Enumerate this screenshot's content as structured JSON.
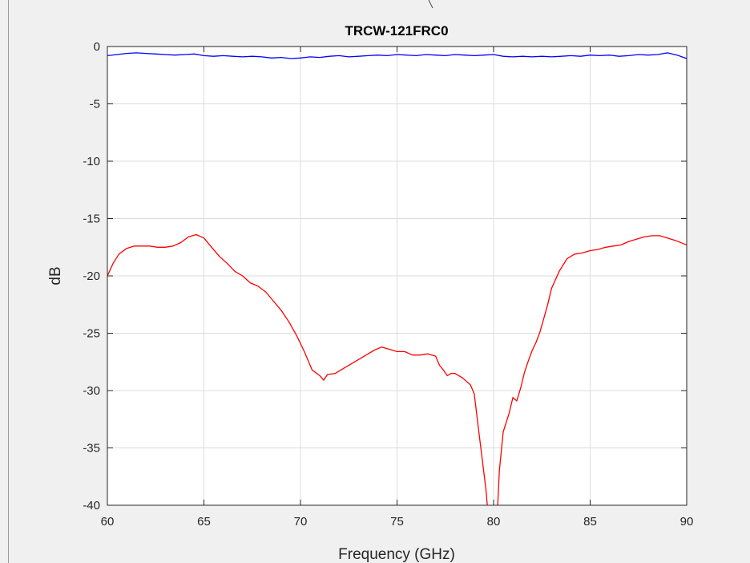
{
  "chart_data": {
    "type": "line",
    "title": "TRCW-121FRC0",
    "xlabel": "Frequency (GHz)",
    "ylabel": "dB",
    "xlim": [
      60,
      90
    ],
    "ylim": [
      -40,
      0
    ],
    "xticks": [
      "60",
      "65",
      "70",
      "75",
      "80",
      "85",
      "90"
    ],
    "yticks": [
      "0",
      "-5",
      "-10",
      "-15",
      "-20",
      "-25",
      "-30",
      "-35",
      "-40"
    ],
    "grid": true,
    "series": [
      {
        "color": "#0000ff",
        "x": [
          60,
          60.5,
          61,
          61.5,
          62,
          62.5,
          63,
          63.5,
          64,
          64.5,
          65,
          65.5,
          66,
          66.5,
          67,
          67.5,
          68,
          68.5,
          69,
          69.5,
          70,
          70.5,
          71,
          71.5,
          72,
          72.5,
          73,
          73.5,
          74,
          74.5,
          75,
          75.5,
          76,
          76.5,
          77,
          77.5,
          78,
          78.5,
          79,
          79.5,
          80,
          80.5,
          81,
          81.5,
          82,
          82.5,
          83,
          83.5,
          84,
          84.5,
          85,
          85.5,
          86,
          86.5,
          87,
          87.5,
          88,
          88.5,
          89,
          89.5,
          90
        ],
        "values": [
          -0.8,
          -0.7,
          -0.6,
          -0.55,
          -0.6,
          -0.65,
          -0.7,
          -0.75,
          -0.7,
          -0.65,
          -0.8,
          -0.85,
          -0.8,
          -0.85,
          -0.9,
          -0.85,
          -0.9,
          -1.0,
          -0.95,
          -1.05,
          -1.0,
          -0.9,
          -0.95,
          -0.85,
          -0.8,
          -0.9,
          -0.85,
          -0.8,
          -0.75,
          -0.8,
          -0.7,
          -0.75,
          -0.8,
          -0.7,
          -0.75,
          -0.8,
          -0.7,
          -0.75,
          -0.8,
          -0.75,
          -0.7,
          -0.85,
          -0.9,
          -0.85,
          -0.9,
          -0.85,
          -0.9,
          -0.85,
          -0.8,
          -0.85,
          -0.75,
          -0.8,
          -0.75,
          -0.85,
          -0.8,
          -0.7,
          -0.75,
          -0.7,
          -0.55,
          -0.75,
          -1.05
        ]
      },
      {
        "color": "#ff0000",
        "x": [
          60,
          60.3,
          60.6,
          61,
          61.4,
          61.8,
          62.2,
          62.6,
          63,
          63.4,
          63.8,
          64.2,
          64.6,
          65,
          65.4,
          65.8,
          66.2,
          66.6,
          67,
          67.4,
          67.8,
          68.2,
          68.6,
          69,
          69.4,
          69.8,
          70.2,
          70.6,
          71,
          71.2,
          71.4,
          71.8,
          72.2,
          72.6,
          73,
          73.4,
          73.8,
          74.2,
          74.6,
          75,
          75.4,
          75.8,
          76.2,
          76.6,
          77,
          77.2,
          77.4,
          77.6,
          77.8,
          78,
          78.4,
          78.8,
          79,
          79.2,
          79.4,
          79.6,
          79.7,
          79.8,
          80.1,
          80.2,
          80.3,
          80.5,
          80.8,
          81,
          81.2,
          81.4,
          81.6,
          81.8,
          82,
          82.2,
          82.4,
          82.6,
          82.8,
          83,
          83.4,
          83.8,
          84.2,
          84.6,
          85,
          85.4,
          85.8,
          86.2,
          86.6,
          87,
          87.4,
          87.8,
          88.2,
          88.6,
          89,
          89.4,
          90
        ],
        "values": [
          -20.0,
          -18.9,
          -18.1,
          -17.6,
          -17.4,
          -17.4,
          -17.4,
          -17.5,
          -17.5,
          -17.4,
          -17.1,
          -16.6,
          -16.4,
          -16.7,
          -17.5,
          -18.3,
          -18.9,
          -19.6,
          -20.0,
          -20.6,
          -20.9,
          -21.4,
          -22.2,
          -23.0,
          -24.0,
          -25.2,
          -26.6,
          -28.2,
          -28.7,
          -29.1,
          -28.6,
          -28.5,
          -28.1,
          -27.7,
          -27.3,
          -26.9,
          -26.5,
          -26.2,
          -26.4,
          -26.6,
          -26.6,
          -26.9,
          -26.9,
          -26.8,
          -27.0,
          -27.8,
          -28.2,
          -28.7,
          -28.5,
          -28.5,
          -28.9,
          -29.5,
          -30.3,
          -33.1,
          -35.8,
          -38.6,
          -40.5,
          -42.0,
          -42.0,
          -40.5,
          -37.0,
          -33.6,
          -32.0,
          -30.6,
          -30.9,
          -29.8,
          -28.4,
          -27.4,
          -26.5,
          -25.8,
          -24.9,
          -23.7,
          -22.5,
          -21.1,
          -19.6,
          -18.5,
          -18.1,
          -18.0,
          -17.8,
          -17.7,
          -17.5,
          -17.4,
          -17.3,
          -17.0,
          -16.8,
          -16.6,
          -16.5,
          -16.5,
          -16.7,
          -16.9,
          -17.3
        ]
      }
    ]
  }
}
